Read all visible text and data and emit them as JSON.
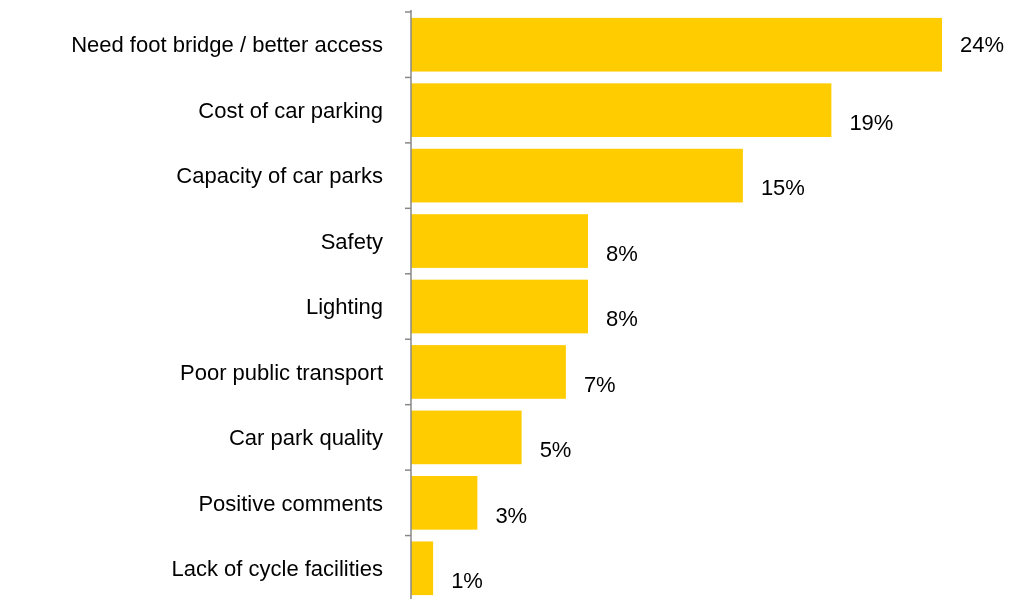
{
  "chart_data": {
    "type": "bar",
    "orientation": "horizontal",
    "categories": [
      "Need foot bridge / better access",
      "Cost of car parking",
      "Capacity of car parks",
      "Safety",
      "Lighting",
      "Poor public transport",
      "Car park quality",
      "Positive comments",
      "Lack of cycle facilities"
    ],
    "values": [
      24,
      19,
      15,
      8,
      8,
      7,
      5,
      3,
      1
    ],
    "color": "#ffcc00",
    "value_labels": [
      "24%",
      "19%",
      "15%",
      "8%",
      "8%",
      "7%",
      "5%",
      "3%",
      "1%"
    ]
  }
}
